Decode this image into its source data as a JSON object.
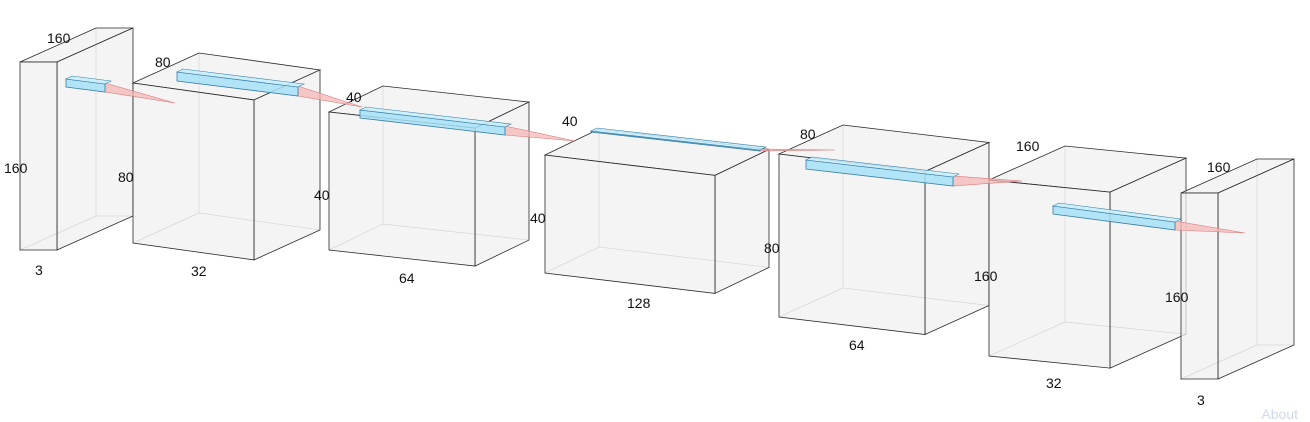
{
  "layers": [
    {
      "depth_label": "160",
      "height_label": "160",
      "width_label": "3"
    },
    {
      "depth_label": "80",
      "height_label": "80",
      "width_label": "32"
    },
    {
      "depth_label": "40",
      "height_label": "40",
      "width_label": "64"
    },
    {
      "depth_label": "40",
      "height_label": "40",
      "width_label": "128"
    },
    {
      "depth_label": "80",
      "height_label": "80",
      "width_label": "64"
    },
    {
      "depth_label": "160",
      "height_label": "160",
      "width_label": "32"
    },
    {
      "depth_label": "160",
      "height_label": "160",
      "width_label": "3"
    }
  ],
  "footer": {
    "about_label": "About"
  }
}
